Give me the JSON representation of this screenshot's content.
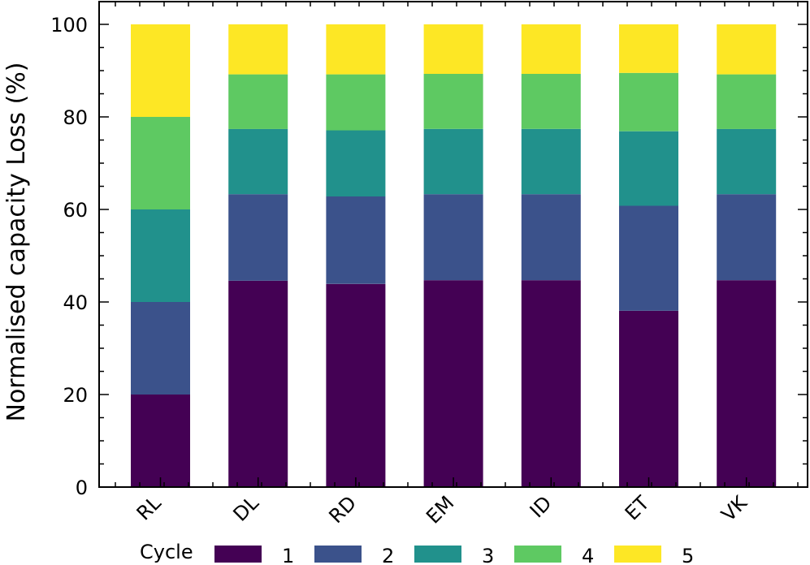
{
  "chart_data": {
    "type": "bar",
    "stacked": true,
    "title": "",
    "xlabel": "",
    "ylabel": "Normalised capacity Loss (%)",
    "ylim": [
      0,
      100
    ],
    "yticks": [
      0,
      20,
      40,
      60,
      80,
      100
    ],
    "categories": [
      "RL",
      "DL",
      "RD",
      "EM",
      "ID",
      "ET",
      "VK"
    ],
    "legend": {
      "title": "Cycle",
      "placement": "bottom"
    },
    "series": [
      {
        "name": "1",
        "color": "#440154",
        "values": [
          20.0,
          44.6,
          43.9,
          44.7,
          44.7,
          38.1,
          44.7
        ]
      },
      {
        "name": "2",
        "color": "#3b528b",
        "values": [
          20.0,
          18.7,
          18.9,
          18.6,
          18.6,
          22.7,
          18.6
        ]
      },
      {
        "name": "3",
        "color": "#21918c",
        "values": [
          20.0,
          14.1,
          14.3,
          14.1,
          14.1,
          16.1,
          14.1
        ]
      },
      {
        "name": "4",
        "color": "#5ec962",
        "values": [
          20.0,
          11.8,
          12.1,
          11.9,
          11.9,
          12.6,
          11.8
        ]
      },
      {
        "name": "5",
        "color": "#fde725",
        "values": [
          20.0,
          10.8,
          10.8,
          10.7,
          10.7,
          10.5,
          10.8
        ]
      }
    ]
  }
}
